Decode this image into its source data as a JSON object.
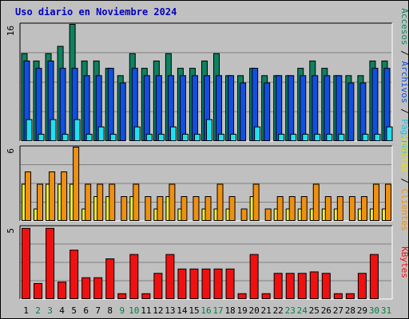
{
  "title": "Uso diario en Noviembre 2024",
  "colors": {
    "background": "#c0c0c0",
    "accesos": "#108060",
    "archivos": "#1050e0",
    "paginas": "#20e0f0",
    "visitas": "#f0f020",
    "clientes": "#f09010",
    "kbytes": "#f01010",
    "title": "#0000c0",
    "weekend_day": "#008040",
    "weekday": "#000000"
  },
  "legend": {
    "top": [
      {
        "label": "Accesos",
        "color": "#108060"
      },
      {
        "sep": "/"
      },
      {
        "label": "Archivos",
        "color": "#1050e0"
      },
      {
        "sep": "/"
      },
      {
        "label": "Páginas",
        "color": "#20c0e0"
      }
    ],
    "middle": [
      {
        "label": "Visitas",
        "color": "#e0e020"
      },
      {
        "sep": "/"
      },
      {
        "label": "Clientes",
        "color": "#f09010"
      }
    ],
    "bottom": [
      {
        "label": "KBytes",
        "color": "#f01010"
      }
    ]
  },
  "chart_data": [
    {
      "type": "bar",
      "panel": "hits",
      "scale_label": "16",
      "ylim": [
        0,
        16
      ],
      "categories": [
        "1",
        "2",
        "3",
        "4",
        "5",
        "6",
        "7",
        "8",
        "9",
        "10",
        "11",
        "12",
        "13",
        "14",
        "15",
        "16",
        "17",
        "18",
        "19",
        "20",
        "21",
        "22",
        "23",
        "24",
        "25",
        "26",
        "27",
        "28",
        "29",
        "30",
        "31"
      ],
      "series": [
        {
          "name": "Accesos",
          "values": [
            12,
            11,
            12,
            13,
            16,
            11,
            11,
            10,
            9,
            12,
            10,
            11,
            12,
            10,
            10,
            11,
            12,
            9,
            9,
            10,
            9,
            9,
            9,
            10,
            11,
            10,
            9,
            9,
            9,
            11,
            11
          ]
        },
        {
          "name": "Archivos",
          "values": [
            11,
            10,
            11,
            10,
            10,
            9,
            9,
            10,
            8,
            10,
            9,
            9,
            9,
            9,
            9,
            9,
            9,
            9,
            8,
            10,
            8,
            9,
            9,
            9,
            9,
            9,
            9,
            8,
            8,
            10,
            10
          ]
        },
        {
          "name": "Páginas",
          "values": [
            3,
            1,
            3,
            1,
            3,
            1,
            2,
            1,
            0,
            2,
            1,
            1,
            2,
            1,
            1,
            3,
            1,
            1,
            0,
            2,
            0,
            1,
            1,
            1,
            1,
            1,
            1,
            0,
            1,
            1,
            2
          ]
        }
      ]
    },
    {
      "type": "bar",
      "panel": "visits",
      "scale_label": "6",
      "ylim": [
        0,
        6
      ],
      "series": [
        {
          "name": "Visitas",
          "values": [
            3,
            1,
            3,
            3,
            3,
            1,
            2,
            2,
            0,
            2,
            0,
            1,
            2,
            1,
            0,
            1,
            1,
            1,
            0,
            2,
            0,
            1,
            1,
            1,
            1,
            1,
            1,
            0,
            1,
            1,
            1
          ]
        },
        {
          "name": "Clientes",
          "values": [
            4,
            3,
            4,
            4,
            6,
            3,
            3,
            3,
            2,
            3,
            2,
            2,
            3,
            2,
            2,
            2,
            3,
            2,
            1,
            3,
            1,
            2,
            2,
            2,
            3,
            2,
            2,
            2,
            2,
            3,
            3
          ]
        }
      ]
    },
    {
      "type": "bar",
      "panel": "kbytes",
      "scale_label": "5",
      "ylim": [
        0,
        5
      ],
      "series": [
        {
          "name": "KBytes",
          "values": [
            4.9,
            1.1,
            4.9,
            1.2,
            3.4,
            1.5,
            1.5,
            2.8,
            0.4,
            3.1,
            0.4,
            1.8,
            3.1,
            2.1,
            2.1,
            2.1,
            2.1,
            2.1,
            0.4,
            3.1,
            0.4,
            1.8,
            1.8,
            1.8,
            1.9,
            1.8,
            0.4,
            0.4,
            1.8,
            3.1,
            0
          ]
        }
      ]
    }
  ],
  "weekend_days": [
    "2",
    "3",
    "9",
    "10",
    "16",
    "17",
    "23",
    "24",
    "30",
    "31"
  ]
}
